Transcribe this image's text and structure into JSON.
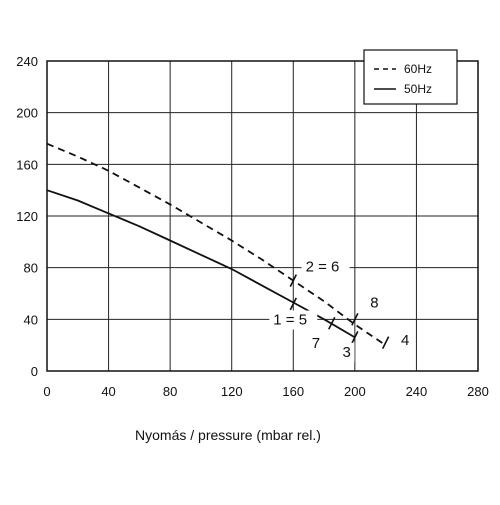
{
  "chart_data": {
    "type": "line",
    "title": "",
    "xlabel": "Nyomás  / pressure (mbar rel.)",
    "ylabel": "",
    "xlim": [
      0,
      280
    ],
    "ylim": [
      0,
      240
    ],
    "xticks": [
      0,
      40,
      80,
      120,
      160,
      200,
      240,
      280
    ],
    "yticks": [
      0,
      40,
      80,
      120,
      160,
      200,
      240
    ],
    "xtick_labels": [
      "0",
      "40",
      "80",
      "120",
      "160",
      "200",
      "240",
      "280"
    ],
    "ytick_labels": [
      "0",
      "40",
      "80",
      "120",
      "160",
      "200",
      "240"
    ],
    "grid": true,
    "legend_position": "top-right",
    "series": [
      {
        "name": "60Hz",
        "style": "dashed",
        "color": "#111111",
        "x": [
          0,
          20,
          40,
          60,
          80,
          100,
          120,
          140,
          160,
          180,
          200,
          220
        ],
        "y": [
          176,
          166,
          155,
          142,
          129,
          115,
          101,
          86,
          70,
          54,
          36,
          20
        ]
      },
      {
        "name": "50Hz",
        "style": "solid",
        "color": "#111111",
        "x": [
          0,
          20,
          40,
          60,
          80,
          100,
          120,
          140,
          160,
          180,
          200
        ],
        "y": [
          140,
          132,
          122,
          112,
          101,
          90,
          79,
          66,
          53,
          40,
          26
        ]
      }
    ],
    "markers": [
      {
        "x": 160,
        "y": 70,
        "series": "60Hz"
      },
      {
        "x": 200,
        "y": 40,
        "series": "60Hz"
      },
      {
        "x": 220,
        "y": 22,
        "series": "60Hz"
      },
      {
        "x": 160,
        "y": 52,
        "series": "50Hz"
      },
      {
        "x": 185,
        "y": 37,
        "series": "50Hz"
      },
      {
        "x": 200,
        "y": 26,
        "series": "50Hz"
      }
    ],
    "annotations": [
      {
        "text": "2 = 6",
        "x": 168,
        "y": 77
      },
      {
        "text": "1 = 5",
        "x": 147,
        "y": 36
      },
      {
        "text": "8",
        "x": 210,
        "y": 49
      },
      {
        "text": "7",
        "x": 172,
        "y": 18
      },
      {
        "text": "3",
        "x": 192,
        "y": 11
      },
      {
        "text": "4",
        "x": 230,
        "y": 20
      }
    ]
  }
}
